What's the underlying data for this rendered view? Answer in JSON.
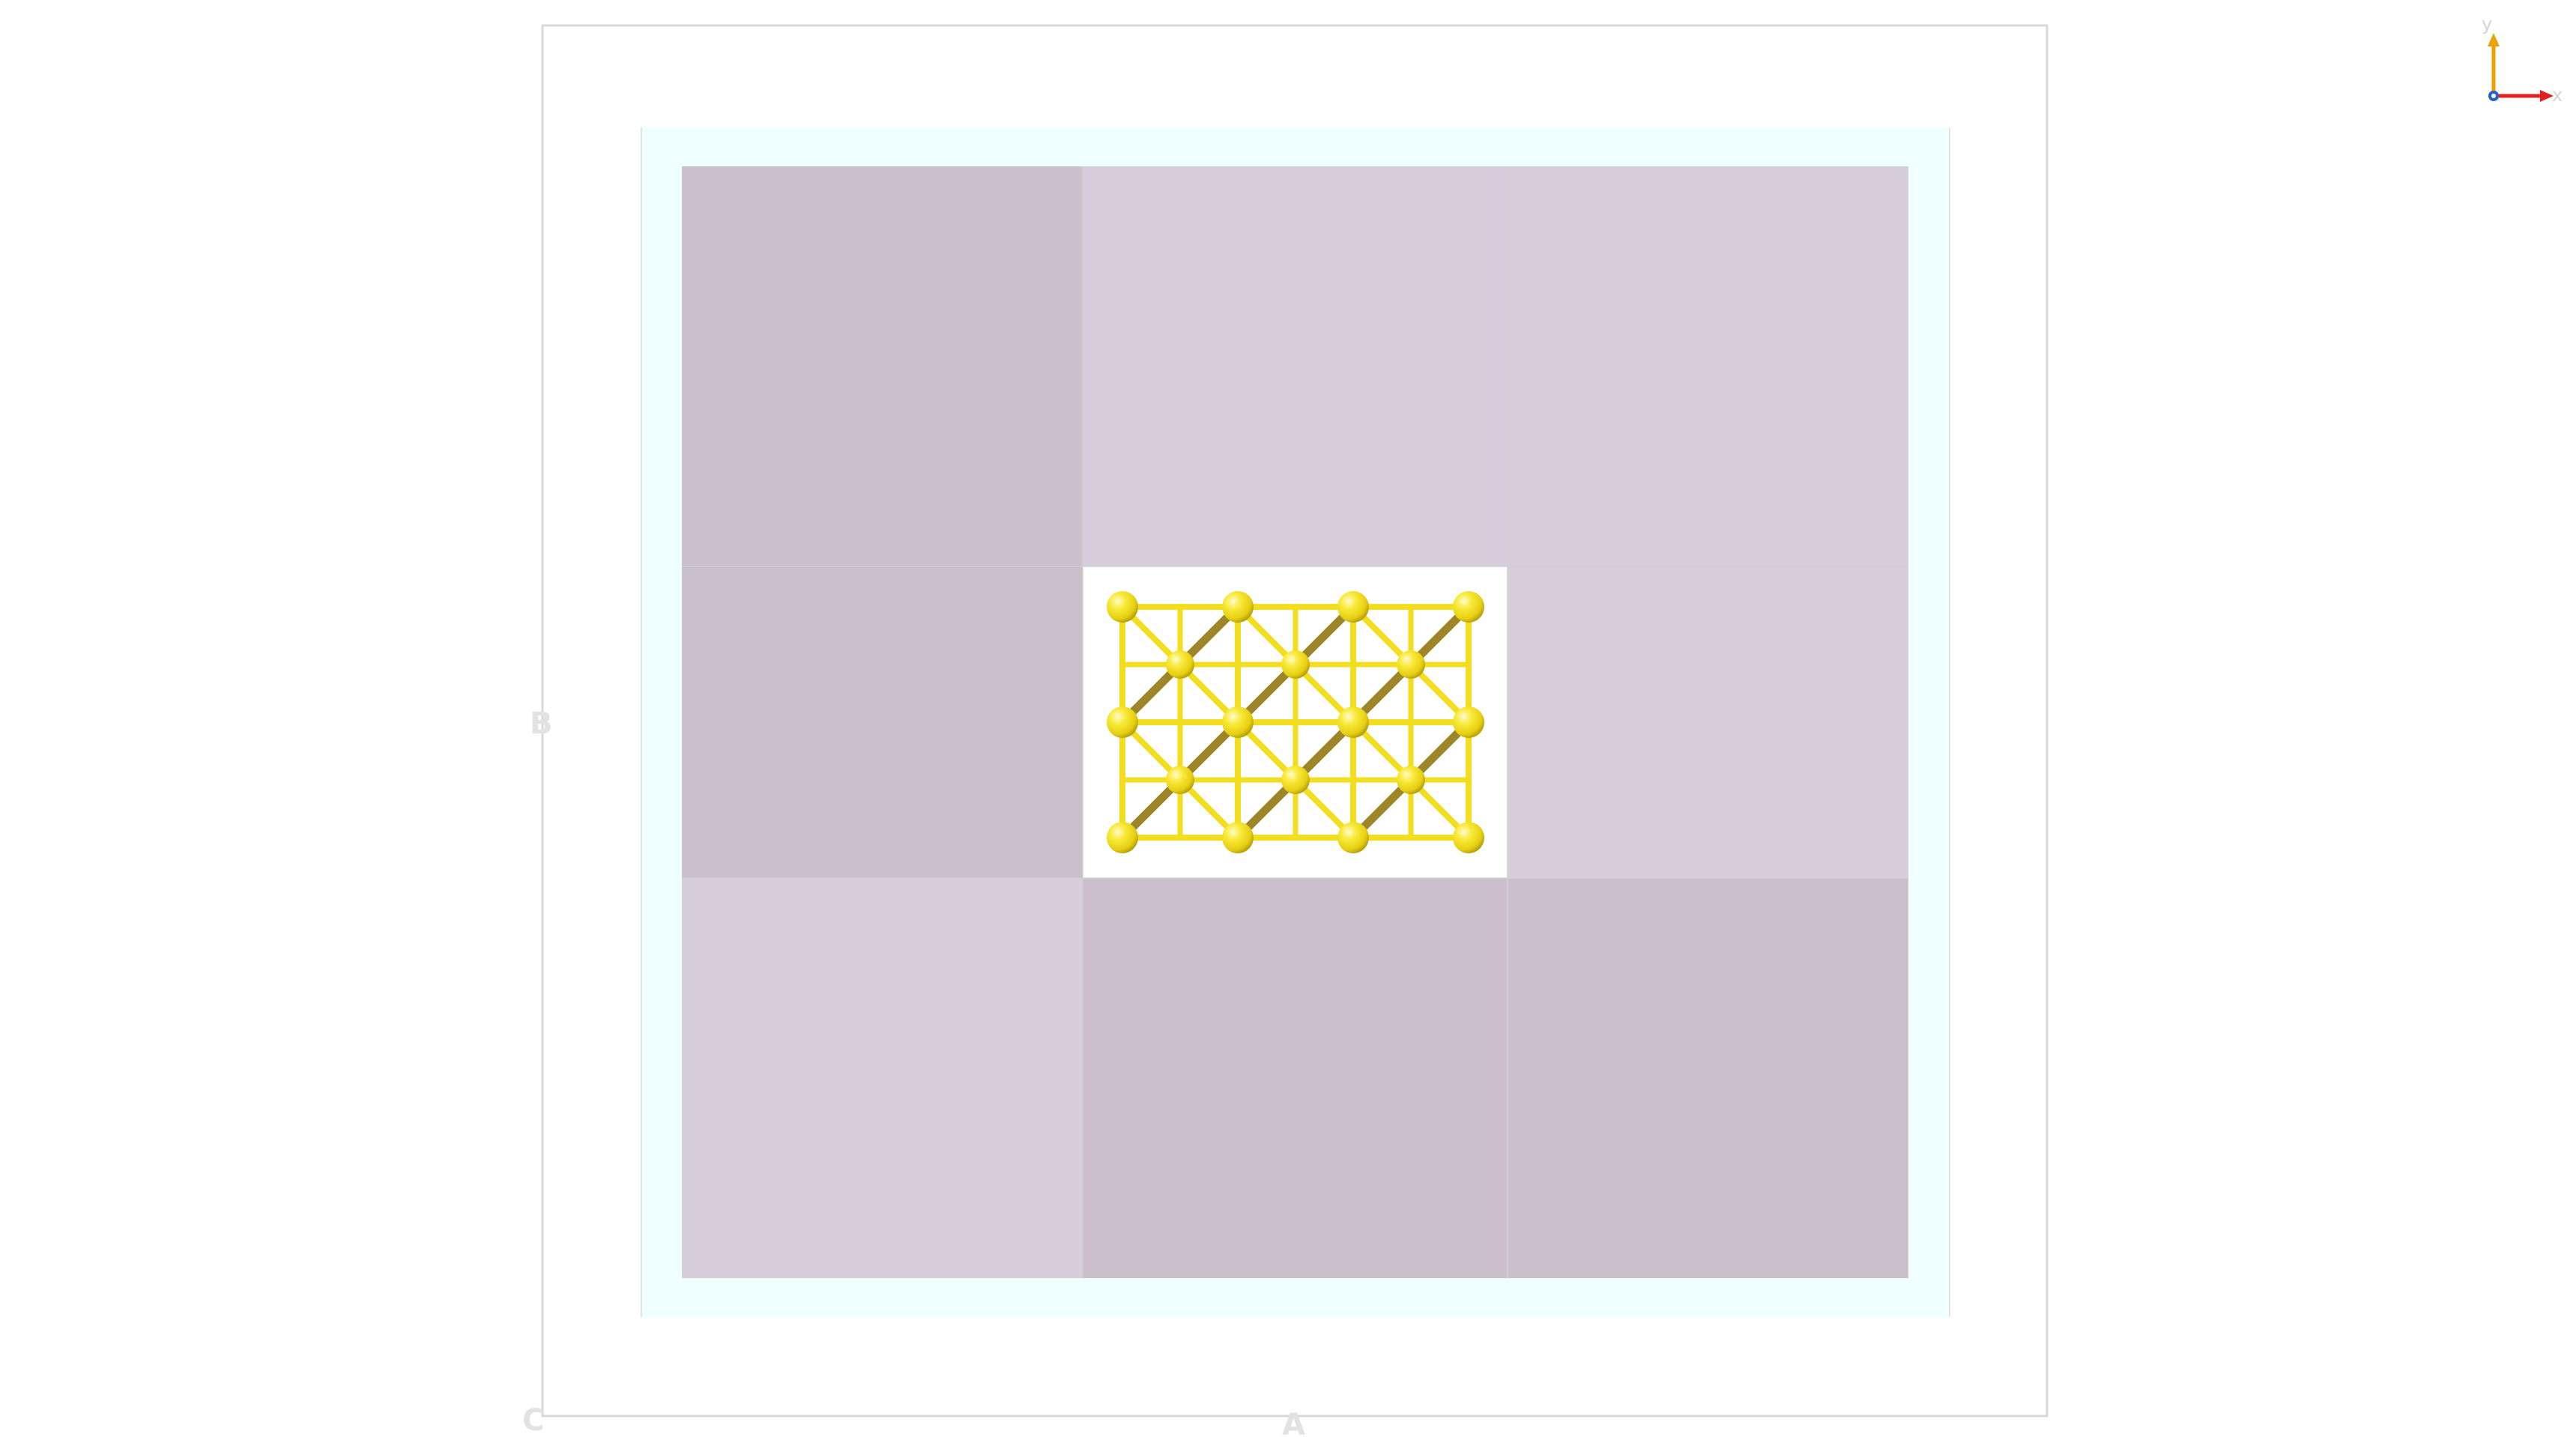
{
  "cell_axes": {
    "a": "A",
    "b": "B",
    "c": "C"
  },
  "orientation_triad": {
    "x": "x",
    "y": "y",
    "x_color": "#e02020",
    "y_color": "#f0a000",
    "z_color": "#2060d0"
  },
  "colors": {
    "outer_frame": "#d9d9d9",
    "slab": "#f0ffff",
    "panel_dark": "#cabfcb",
    "panel_light": "#d8cdda",
    "center_cell": "#ffffff",
    "atom": "#f4e11a",
    "bond": "#f2de1e",
    "bond_back": "#9c8628"
  },
  "panels": [
    {
      "row": 0,
      "col": 0,
      "shade": "dark"
    },
    {
      "row": 0,
      "col": 1,
      "shade": "light"
    },
    {
      "row": 0,
      "col": 2,
      "shade": "light"
    },
    {
      "row": 1,
      "col": 0,
      "shade": "dark"
    },
    {
      "row": 1,
      "col": 1,
      "shade": "center"
    },
    {
      "row": 1,
      "col": 2,
      "shade": "light"
    },
    {
      "row": 2,
      "col": 0,
      "shade": "light"
    },
    {
      "row": 2,
      "col": 1,
      "shade": "dark"
    },
    {
      "row": 2,
      "col": 2,
      "shade": "dark"
    }
  ],
  "lattice": {
    "corner_columns": 4,
    "corner_rows": 3,
    "face_columns": 3,
    "face_rows": 2
  }
}
